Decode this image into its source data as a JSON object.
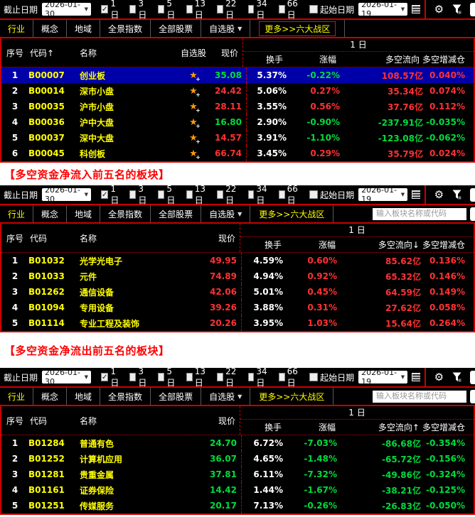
{
  "colors": {
    "up": "#ff3232",
    "down": "#00dc3c",
    "yellow": "#ffff00",
    "line": "#cc0000",
    "selected_row": "#0000a8"
  },
  "toolbar": {
    "end_date_label": "截止日期",
    "end_date_value": "2026-01-30",
    "periods": [
      {
        "label": "1日",
        "checked": true
      },
      {
        "label": "3日",
        "checked": false
      },
      {
        "label": "5日",
        "checked": false
      },
      {
        "label": "13日",
        "checked": false
      },
      {
        "label": "22日",
        "checked": false
      },
      {
        "label": "34日",
        "checked": false
      },
      {
        "label": "66日",
        "checked": false
      }
    ],
    "start_date_label": "起始日期",
    "start_date_value": "2026-01-19"
  },
  "tabs": {
    "items": [
      {
        "label": "行业",
        "active": true
      },
      {
        "label": "概念"
      },
      {
        "label": "地域"
      },
      {
        "label": "全景指数"
      },
      {
        "label": "全部股票"
      },
      {
        "label": "自选股",
        "dropdown": true
      }
    ],
    "more_label": "更多>>六大战区",
    "search_placeholder": "输入板块名称或代码"
  },
  "group_label": "1 日",
  "flow_unit": "亿",
  "captions": {
    "inflow": "【多空资金净流入前五名的板块】",
    "outflow": "【多空资金净流出前五名的板块】"
  },
  "panels": [
    {
      "has_watch": true,
      "columns": {
        "seq": "序号",
        "code": "代码↑",
        "name": "名称",
        "watch": "自选股",
        "price": "现价",
        "turnover": "换手",
        "change": "涨幅",
        "flow": "多空流向",
        "position": "多空增减仓"
      },
      "rows": [
        {
          "seq": "1",
          "code": "B00007",
          "name": "创业板",
          "price": "35.08",
          "price_color": "down",
          "turnover": "5.37%",
          "change": "-0.22%",
          "change_color": "down",
          "flow": "108.57",
          "flow_color": "up",
          "pos": "0.040%",
          "pos_color": "up",
          "selected": true
        },
        {
          "seq": "2",
          "code": "B00014",
          "name": "深市小盘",
          "price": "24.42",
          "price_color": "up",
          "turnover": "5.06%",
          "change": "0.27%",
          "change_color": "up",
          "flow": "35.34",
          "flow_color": "up",
          "pos": "0.074%",
          "pos_color": "up"
        },
        {
          "seq": "3",
          "code": "B00035",
          "name": "沪市小盘",
          "price": "28.11",
          "price_color": "up",
          "turnover": "3.55%",
          "change": "0.56%",
          "change_color": "up",
          "flow": "37.76",
          "flow_color": "up",
          "pos": "0.112%",
          "pos_color": "up"
        },
        {
          "seq": "4",
          "code": "B00036",
          "name": "沪中大盘",
          "price": "16.80",
          "price_color": "down",
          "turnover": "2.90%",
          "change": "-0.90%",
          "change_color": "down",
          "flow": "-237.91",
          "flow_color": "down",
          "pos": "-0.035%",
          "pos_color": "down"
        },
        {
          "seq": "5",
          "code": "B00037",
          "name": "深中大盘",
          "price": "14.57",
          "price_color": "up",
          "turnover": "3.91%",
          "change": "-1.10%",
          "change_color": "down",
          "flow": "-123.08",
          "flow_color": "down",
          "pos": "-0.062%",
          "pos_color": "down"
        },
        {
          "seq": "6",
          "code": "B00045",
          "name": "科创板",
          "price": "66.74",
          "price_color": "up",
          "turnover": "3.45%",
          "change": "0.29%",
          "change_color": "up",
          "flow": "35.79",
          "flow_color": "up",
          "pos": "0.024%",
          "pos_color": "up"
        }
      ]
    },
    {
      "has_watch": false,
      "columns": {
        "seq": "序号",
        "code": "代码",
        "name": "名称",
        "price": "现价",
        "turnover": "换手",
        "change": "涨幅",
        "flow": "多空流向↓",
        "position": "多空增减仓"
      },
      "rows": [
        {
          "seq": "1",
          "code": "B01032",
          "name": "光学光电子",
          "price": "49.95",
          "price_color": "up",
          "turnover": "4.59%",
          "change": "0.60%",
          "change_color": "up",
          "flow": "85.62",
          "flow_color": "up",
          "pos": "0.136%",
          "pos_color": "up"
        },
        {
          "seq": "2",
          "code": "B01033",
          "name": "元件",
          "price": "74.89",
          "price_color": "up",
          "turnover": "4.94%",
          "change": "0.92%",
          "change_color": "up",
          "flow": "65.32",
          "flow_color": "up",
          "pos": "0.146%",
          "pos_color": "up"
        },
        {
          "seq": "3",
          "code": "B01262",
          "name": "通信设备",
          "price": "42.06",
          "price_color": "up",
          "turnover": "5.01%",
          "change": "0.45%",
          "change_color": "up",
          "flow": "64.59",
          "flow_color": "up",
          "pos": "0.149%",
          "pos_color": "up"
        },
        {
          "seq": "4",
          "code": "B01094",
          "name": "专用设备",
          "price": "39.26",
          "price_color": "up",
          "turnover": "3.88%",
          "change": "0.31%",
          "change_color": "up",
          "flow": "27.62",
          "flow_color": "up",
          "pos": "0.058%",
          "pos_color": "up"
        },
        {
          "seq": "5",
          "code": "B01114",
          "name": "专业工程及装饰",
          "price": "20.26",
          "price_color": "up",
          "turnover": "3.95%",
          "change": "1.03%",
          "change_color": "up",
          "flow": "15.64",
          "flow_color": "up",
          "pos": "0.264%",
          "pos_color": "up"
        }
      ]
    },
    {
      "has_watch": false,
      "columns": {
        "seq": "序号",
        "code": "代码",
        "name": "名称",
        "price": "现价",
        "turnover": "换手",
        "change": "涨幅",
        "flow": "多空流向↑",
        "position": "多空增减仓"
      },
      "rows": [
        {
          "seq": "1",
          "code": "B01284",
          "name": "普通有色",
          "price": "24.70",
          "price_color": "down",
          "turnover": "6.72%",
          "change": "-7.03%",
          "change_color": "down",
          "flow": "-86.68",
          "flow_color": "down",
          "pos": "-0.354%",
          "pos_color": "down"
        },
        {
          "seq": "2",
          "code": "B01252",
          "name": "计算机应用",
          "price": "36.07",
          "price_color": "down",
          "turnover": "4.65%",
          "change": "-1.48%",
          "change_color": "down",
          "flow": "-65.72",
          "flow_color": "down",
          "pos": "-0.156%",
          "pos_color": "down"
        },
        {
          "seq": "3",
          "code": "B01281",
          "name": "贵重金属",
          "price": "37.81",
          "price_color": "down",
          "turnover": "6.11%",
          "change": "-7.32%",
          "change_color": "down",
          "flow": "-49.86",
          "flow_color": "down",
          "pos": "-0.324%",
          "pos_color": "down"
        },
        {
          "seq": "4",
          "code": "B01161",
          "name": "证券保险",
          "price": "14.42",
          "price_color": "down",
          "turnover": "1.44%",
          "change": "-1.67%",
          "change_color": "down",
          "flow": "-38.21",
          "flow_color": "down",
          "pos": "-0.125%",
          "pos_color": "down"
        },
        {
          "seq": "5",
          "code": "B01251",
          "name": "传媒服务",
          "price": "20.17",
          "price_color": "down",
          "turnover": "7.13%",
          "change": "-0.26%",
          "change_color": "down",
          "flow": "-26.83",
          "flow_color": "down",
          "pos": "-0.050%",
          "pos_color": "down"
        }
      ]
    }
  ]
}
